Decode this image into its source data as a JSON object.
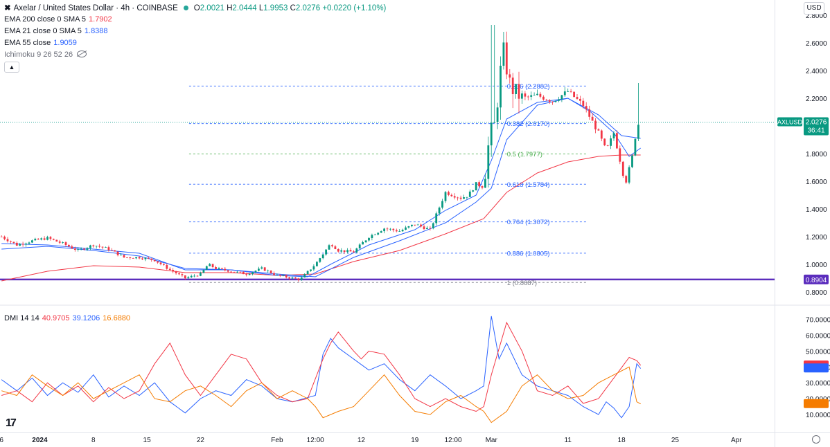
{
  "header": {
    "symbol_title": "Axelar / United States Dollar · 4h · COINBASE",
    "ohlc": {
      "open": "2.0021",
      "high": "2.0444",
      "low": "1.9953",
      "close": "2.0276",
      "change": "+0.0220 (+1.10%)"
    },
    "currency_button": "USD",
    "collapse_icon": "chevron-up-icon",
    "tv_logo": "17"
  },
  "indicators": [
    {
      "label": "EMA 200 close 0 SMA 5",
      "value": "1.7902",
      "color": "#f23645"
    },
    {
      "label": "EMA 21 close 0 SMA 5",
      "value": "1.8388",
      "color": "#2962ff"
    },
    {
      "label": "EMA 55 close",
      "value": "1.9059",
      "color": "#2962ff"
    },
    {
      "label": "Ichimoku 9 26 52 26",
      "value": "",
      "color": "#787b86"
    }
  ],
  "dmi_label": {
    "label": "DMI 14 14",
    "values": [
      "40.9705",
      "39.1206",
      "16.6880"
    ],
    "colors": [
      "#f23645",
      "#2962ff",
      "#f57c00"
    ]
  },
  "chart_data": [
    {
      "type": "line",
      "title": "AXLUSD 4h price",
      "ylim": [
        0.75,
        2.85
      ],
      "y_ticks": [
        "2.8000",
        "2.6000",
        "2.4000",
        "2.2000",
        "2.0000",
        "1.8000",
        "1.6000",
        "1.4000",
        "1.2000",
        "1.0000",
        "0.8000"
      ],
      "y_tick_values": [
        2.8,
        2.6,
        2.4,
        2.2,
        2.0,
        1.8,
        1.6,
        1.4,
        1.2,
        1.0,
        0.8
      ],
      "x_ticks": [
        "6",
        "2024",
        "8",
        "15",
        "22",
        "Feb",
        "12:00",
        "12",
        "19",
        "12:00",
        "Mar",
        "11",
        "18",
        "25",
        "Apr"
      ],
      "x_tick_days": [
        -26,
        -21,
        -14,
        -7,
        0,
        10,
        15,
        21,
        28,
        33,
        38,
        48,
        55,
        62,
        70
      ],
      "x_range_days": [
        -26.2,
        75
      ],
      "last_price_label": {
        "symbol": "AXLUSD",
        "price": "2.0276",
        "countdown": "36:41"
      },
      "horizontal_line": {
        "value": 0.8904,
        "label": "0.8904",
        "color": "#5b2dbd"
      },
      "fib_levels": [
        {
          "label": "0.236 (2.2882)",
          "value": 2.2882,
          "color": "#2962ff"
        },
        {
          "label": "0.382 (2.0170)",
          "value": 2.017,
          "color": "#2962ff"
        },
        {
          "label": "0.5 (1.7977)",
          "value": 1.7977,
          "color": "#4caf50"
        },
        {
          "label": "0.618 (1.5784)",
          "value": 1.5784,
          "color": "#2962ff"
        },
        {
          "label": "0.764 (1.3072)",
          "value": 1.3072,
          "color": "#2962ff"
        },
        {
          "label": "0.886 (1.0805)",
          "value": 1.0805,
          "color": "#2962ff"
        },
        {
          "label": "1 (0.8687)",
          "value": 0.8687,
          "color": "#787b86"
        }
      ],
      "fib_x_start_day": -1.5,
      "price_anchors": [
        [
          -26,
          1.2
        ],
        [
          -24,
          1.14
        ],
        [
          -22,
          1.17
        ],
        [
          -20,
          1.19
        ],
        [
          -18,
          1.15
        ],
        [
          -16,
          1.1
        ],
        [
          -14,
          1.14
        ],
        [
          -12,
          1.11
        ],
        [
          -10,
          1.05
        ],
        [
          -8,
          1.05
        ],
        [
          -6,
          1.03
        ],
        [
          -4,
          0.96
        ],
        [
          -2,
          0.9
        ],
        [
          0,
          0.93
        ],
        [
          1,
          1.0
        ],
        [
          2,
          0.97
        ],
        [
          4,
          0.95
        ],
        [
          6,
          0.93
        ],
        [
          8,
          0.97
        ],
        [
          10,
          0.92
        ],
        [
          13,
          0.89
        ],
        [
          15,
          1.0
        ],
        [
          17,
          1.15
        ],
        [
          18,
          1.1
        ],
        [
          20,
          1.09
        ],
        [
          22,
          1.2
        ],
        [
          24,
          1.26
        ],
        [
          26,
          1.24
        ],
        [
          28,
          1.29
        ],
        [
          30,
          1.25
        ],
        [
          32,
          1.52
        ],
        [
          34,
          1.48
        ],
        [
          35,
          1.5
        ],
        [
          36,
          1.58
        ],
        [
          37,
          1.56
        ],
        [
          37.8,
          1.95
        ],
        [
          38.5,
          2.02
        ],
        [
          39.5,
          2.56
        ],
        [
          40.5,
          2.28
        ],
        [
          42,
          2.2
        ],
        [
          44,
          2.22
        ],
        [
          46,
          2.18
        ],
        [
          48,
          2.25
        ],
        [
          50,
          2.15
        ],
        [
          52,
          1.95
        ],
        [
          53,
          1.82
        ],
        [
          54,
          1.95
        ],
        [
          55.5,
          1.58
        ],
        [
          56.5,
          1.8
        ],
        [
          57,
          2.0
        ],
        [
          57.5,
          2.03
        ]
      ],
      "series": [
        {
          "name": "EMA 200",
          "color": "#f23645",
          "values": [
            [
              -26,
              0.88
            ],
            [
              -20,
              0.95
            ],
            [
              -14,
              0.99
            ],
            [
              -8,
              0.98
            ],
            [
              -2,
              0.94
            ],
            [
              4,
              0.94
            ],
            [
              10,
              0.92
            ],
            [
              15,
              0.93
            ],
            [
              20,
              1.02
            ],
            [
              26,
              1.1
            ],
            [
              32,
              1.22
            ],
            [
              37,
              1.33
            ],
            [
              40,
              1.52
            ],
            [
              44,
              1.66
            ],
            [
              48,
              1.74
            ],
            [
              52,
              1.78
            ],
            [
              55,
              1.79
            ],
            [
              57.5,
              1.79
            ]
          ]
        },
        {
          "name": "EMA 21",
          "color": "#2962ff",
          "values": [
            [
              -26,
              1.15
            ],
            [
              -20,
              1.14
            ],
            [
              -14,
              1.11
            ],
            [
              -8,
              1.08
            ],
            [
              -2,
              0.96
            ],
            [
              4,
              0.96
            ],
            [
              10,
              0.92
            ],
            [
              14,
              0.91
            ],
            [
              17,
              1.0
            ],
            [
              22,
              1.14
            ],
            [
              28,
              1.25
            ],
            [
              32,
              1.39
            ],
            [
              36,
              1.5
            ],
            [
              38,
              1.75
            ],
            [
              40,
              2.05
            ],
            [
              44,
              2.17
            ],
            [
              48,
              2.2
            ],
            [
              51,
              2.1
            ],
            [
              54,
              1.95
            ],
            [
              56,
              1.78
            ],
            [
              57.5,
              1.84
            ]
          ]
        },
        {
          "name": "EMA 55",
          "color": "#2962ff",
          "values": [
            [
              -26,
              1.11
            ],
            [
              -20,
              1.13
            ],
            [
              -14,
              1.1
            ],
            [
              -8,
              1.06
            ],
            [
              -2,
              0.97
            ],
            [
              4,
              0.96
            ],
            [
              10,
              0.93
            ],
            [
              15,
              0.91
            ],
            [
              20,
              1.05
            ],
            [
              26,
              1.17
            ],
            [
              32,
              1.3
            ],
            [
              36,
              1.45
            ],
            [
              38,
              1.55
            ],
            [
              40,
              1.9
            ],
            [
              44,
              2.15
            ],
            [
              48,
              2.2
            ],
            [
              52,
              2.08
            ],
            [
              55,
              1.93
            ],
            [
              57.5,
              1.91
            ]
          ]
        }
      ]
    },
    {
      "type": "line",
      "title": "DMI 14 14",
      "ylim": [
        0,
        75
      ],
      "y_ticks": [
        "70.0000",
        "60.0000",
        "50.0000",
        "40.0000",
        "30.0000",
        "20.0000",
        "10.0000"
      ],
      "y_tick_values": [
        70,
        60,
        50,
        40,
        30,
        20,
        10
      ],
      "series": [
        {
          "name": "+DI",
          "color": "#2962ff",
          "values": [
            [
              -26,
              32
            ],
            [
              -24,
              25
            ],
            [
              -22,
              33
            ],
            [
              -20,
              22
            ],
            [
              -18,
              30
            ],
            [
              -16,
              24
            ],
            [
              -14,
              35
            ],
            [
              -12,
              21
            ],
            [
              -10,
              28
            ],
            [
              -8,
              22
            ],
            [
              -6,
              30
            ],
            [
              -4,
              18
            ],
            [
              -2,
              11
            ],
            [
              0,
              20
            ],
            [
              2,
              25
            ],
            [
              4,
              22
            ],
            [
              6,
              32
            ],
            [
              8,
              28
            ],
            [
              10,
              20
            ],
            [
              12,
              18
            ],
            [
              15,
              22
            ],
            [
              16,
              48
            ],
            [
              17,
              58
            ],
            [
              18,
              52
            ],
            [
              20,
              45
            ],
            [
              22,
              38
            ],
            [
              24,
              42
            ],
            [
              26,
              32
            ],
            [
              28,
              25
            ],
            [
              30,
              35
            ],
            [
              32,
              28
            ],
            [
              34,
              20
            ],
            [
              36,
              25
            ],
            [
              37,
              28
            ],
            [
              38,
              72
            ],
            [
              39,
              45
            ],
            [
              40,
              55
            ],
            [
              42,
              35
            ],
            [
              44,
              28
            ],
            [
              46,
              25
            ],
            [
              48,
              22
            ],
            [
              50,
              15
            ],
            [
              52,
              10
            ],
            [
              53,
              18
            ],
            [
              54,
              14
            ],
            [
              55,
              8
            ],
            [
              56,
              15
            ],
            [
              57,
              42
            ],
            [
              57.5,
              39
            ]
          ]
        },
        {
          "name": "-DI",
          "color": "#f23645",
          "values": [
            [
              -26,
              22
            ],
            [
              -24,
              25
            ],
            [
              -22,
              18
            ],
            [
              -20,
              30
            ],
            [
              -18,
              22
            ],
            [
              -16,
              28
            ],
            [
              -14,
              18
            ],
            [
              -12,
              27
            ],
            [
              -10,
              20
            ],
            [
              -8,
              25
            ],
            [
              -6,
              42
            ],
            [
              -4,
              55
            ],
            [
              -2,
              35
            ],
            [
              0,
              22
            ],
            [
              2,
              35
            ],
            [
              4,
              48
            ],
            [
              6,
              45
            ],
            [
              8,
              30
            ],
            [
              10,
              22
            ],
            [
              12,
              18
            ],
            [
              14,
              20
            ],
            [
              16,
              45
            ],
            [
              17,
              55
            ],
            [
              18,
              62
            ],
            [
              20,
              50
            ],
            [
              21,
              45
            ],
            [
              22,
              50
            ],
            [
              24,
              48
            ],
            [
              26,
              35
            ],
            [
              28,
              20
            ],
            [
              30,
              15
            ],
            [
              32,
              20
            ],
            [
              34,
              15
            ],
            [
              36,
              12
            ],
            [
              37,
              15
            ],
            [
              38,
              35
            ],
            [
              40,
              68
            ],
            [
              42,
              50
            ],
            [
              44,
              25
            ],
            [
              46,
              22
            ],
            [
              48,
              28
            ],
            [
              50,
              17
            ],
            [
              52,
              20
            ],
            [
              54,
              33
            ],
            [
              56,
              46
            ],
            [
              57,
              44
            ],
            [
              57.5,
              41
            ]
          ]
        },
        {
          "name": "ADX",
          "color": "#f57c00",
          "values": [
            [
              -26,
              25
            ],
            [
              -24,
              22
            ],
            [
              -22,
              35
            ],
            [
              -20,
              28
            ],
            [
              -18,
              22
            ],
            [
              -16,
              30
            ],
            [
              -14,
              20
            ],
            [
              -12,
              25
            ],
            [
              -10,
              30
            ],
            [
              -8,
              35
            ],
            [
              -6,
              20
            ],
            [
              -4,
              18
            ],
            [
              -2,
              25
            ],
            [
              0,
              28
            ],
            [
              2,
              22
            ],
            [
              4,
              15
            ],
            [
              6,
              25
            ],
            [
              8,
              30
            ],
            [
              10,
              20
            ],
            [
              12,
              25
            ],
            [
              14,
              20
            ],
            [
              15,
              15
            ],
            [
              16,
              8
            ],
            [
              18,
              12
            ],
            [
              20,
              15
            ],
            [
              22,
              25
            ],
            [
              24,
              35
            ],
            [
              26,
              22
            ],
            [
              28,
              12
            ],
            [
              30,
              10
            ],
            [
              32,
              18
            ],
            [
              34,
              22
            ],
            [
              36,
              15
            ],
            [
              37,
              12
            ],
            [
              38,
              5
            ],
            [
              40,
              12
            ],
            [
              42,
              28
            ],
            [
              44,
              35
            ],
            [
              46,
              25
            ],
            [
              48,
              20
            ],
            [
              50,
              22
            ],
            [
              52,
              30
            ],
            [
              54,
              35
            ],
            [
              56,
              40
            ],
            [
              57,
              18
            ],
            [
              57.5,
              16.7
            ]
          ]
        }
      ]
    }
  ]
}
